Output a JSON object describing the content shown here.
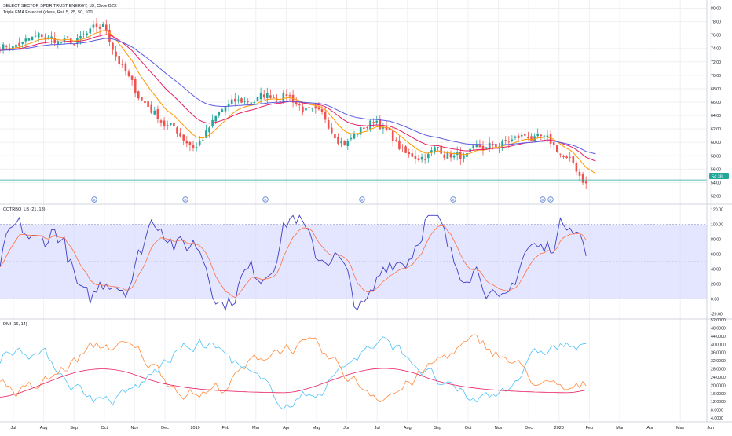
{
  "header": {
    "symbol_title": "SELECT SECTOR SPDR TRUST ENERGY, 1D, Cboe BZX",
    "indicator_line": "Triple EMA Forecast (close, Rsi, 5, 25, 50, 100)"
  },
  "panes": {
    "oscillator_label": "CCTRBO_LB (21, 13)",
    "dmi_label": "DMI (16, 14)"
  },
  "price_tag": "54.38",
  "event_markers": [
    "D",
    "D",
    "D",
    "D",
    "D",
    "D",
    "D"
  ],
  "colors": {
    "background": "#ffffff",
    "grid": "#eef0f3",
    "candle_up": "#26a69a",
    "candle_down": "#ef5350",
    "ema_fast": "#ff9800",
    "ema_mid": "#e91e63",
    "ema_slow": "#5b5be0",
    "oscillator_line": "#3f3fc4",
    "oscillator_signal": "#ff7043",
    "oscillator_band": "#d9dcff",
    "dmi_plus": "#4fc3f7",
    "dmi_minus": "#ff8a3d",
    "dmi_adx": "#e91e63",
    "price_line": "#26a69a",
    "marker": "#5a7fd6"
  },
  "chart_data": [
    {
      "type": "candlestick",
      "title": "SELECT SECTOR SPDR TRUST ENERGY, 1D, Cboe BZX",
      "y_axis_ticks": [
        "80.00",
        "78.00",
        "76.00",
        "74.00",
        "72.00",
        "70.00",
        "68.00",
        "66.00",
        "64.00",
        "62.00",
        "60.00",
        "58.00",
        "56.00",
        "54.00",
        "52.00"
      ],
      "ylim": [
        51,
        81
      ],
      "x_axis_ticks": [
        "Jul",
        "Aug",
        "Sep",
        "Oct",
        "Nov",
        "Dec",
        "2019",
        "Feb",
        "Mar",
        "Apr",
        "May",
        "Jun",
        "Jul",
        "Aug",
        "Sep",
        "Oct",
        "Nov",
        "Dec",
        "2020",
        "Feb",
        "Mar",
        "Apr",
        "May",
        "Jun"
      ],
      "close_anchors": [
        {
          "x": "Jul",
          "y": 74.5
        },
        {
          "x": "Aug",
          "y": 75.5
        },
        {
          "x": "Sep",
          "y": 74.5
        },
        {
          "x": "Oct",
          "y": 77.0
        },
        {
          "x": "Nov",
          "y": 67.5
        },
        {
          "x": "Dec",
          "y": 63.0
        },
        {
          "x": "2019",
          "y": 59.5
        },
        {
          "x": "Feb",
          "y": 65.0
        },
        {
          "x": "Mar",
          "y": 66.5
        },
        {
          "x": "Apr",
          "y": 67.5
        },
        {
          "x": "May",
          "y": 63.5
        },
        {
          "x": "Jun",
          "y": 60.5
        },
        {
          "x": "Jul",
          "y": 63.5
        },
        {
          "x": "Aug",
          "y": 57.5
        },
        {
          "x": "Sep",
          "y": 59.0
        },
        {
          "x": "Oct",
          "y": 57.5
        },
        {
          "x": "Nov",
          "y": 59.5
        },
        {
          "x": "Dec",
          "y": 61.0
        },
        {
          "x": "2020",
          "y": 58.5
        },
        {
          "x": "Feb",
          "y": 53.5
        }
      ],
      "last_price": 54.38,
      "series": [
        {
          "name": "EMA 25"
        },
        {
          "name": "EMA 50"
        },
        {
          "name": "EMA 100"
        }
      ]
    },
    {
      "type": "line",
      "title": "CCTRBO_LB (21, 13)",
      "y_axis_ticks": [
        "120.00",
        "100.00",
        "80.00",
        "60.00",
        "40.00",
        "20.00",
        "0.00",
        "-20.00"
      ],
      "ylim": [
        -25,
        125
      ],
      "band": [
        0,
        100
      ],
      "midline": 50
    },
    {
      "type": "line",
      "title": "DMI (16, 14)",
      "y_axis_ticks": [
        "52.0000",
        "48.0000",
        "44.0000",
        "40.0000",
        "36.0000",
        "32.0000",
        "28.0000",
        "24.0000",
        "20.0000",
        "16.0000",
        "12.0000",
        "8.0000",
        "4.0000"
      ],
      "ylim": [
        4,
        52
      ]
    }
  ]
}
